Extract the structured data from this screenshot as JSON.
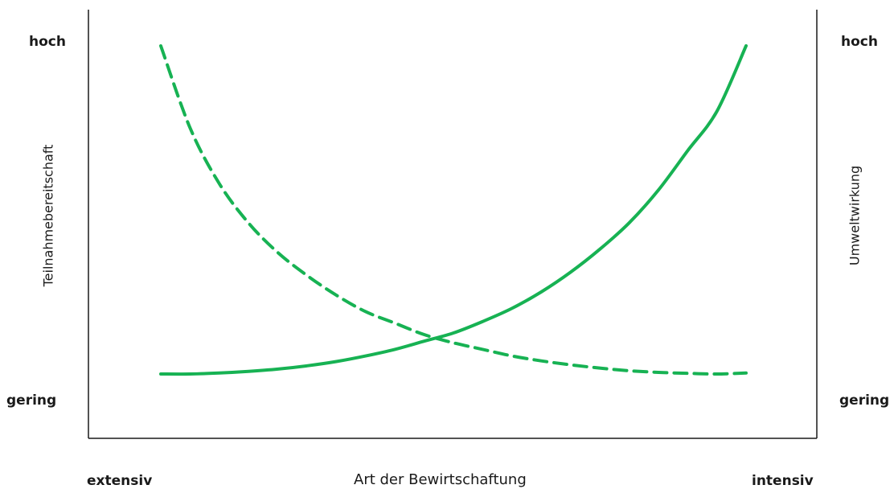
{
  "chart_data": {
    "type": "line",
    "x_axis": {
      "title": "Art der Bewirtschaftung",
      "min_label": "extensiv",
      "max_label": "intensiv",
      "range": [
        0,
        1
      ]
    },
    "y_axis_left": {
      "title": "Teilnahmebereitschaft",
      "max_label": "hoch",
      "min_label": "gering",
      "range": [
        0,
        1
      ]
    },
    "y_axis_right": {
      "title": "Umweltwirkung",
      "max_label": "hoch",
      "min_label": "gering",
      "range": [
        0,
        1
      ]
    },
    "grid": false,
    "color": "#17b253",
    "series": [
      {
        "style": "dashed",
        "axis": "left",
        "x": [
          0.0,
          0.05,
          0.1,
          0.15,
          0.2,
          0.25,
          0.3,
          0.35,
          0.4,
          0.45,
          0.5,
          0.55,
          0.6,
          0.65,
          0.7,
          0.75,
          0.8,
          0.85,
          0.9,
          0.95,
          1.0
        ],
        "values": [
          1.0,
          0.75,
          0.58,
          0.46,
          0.37,
          0.3,
          0.24,
          0.19,
          0.155,
          0.12,
          0.095,
          0.075,
          0.055,
          0.04,
          0.028,
          0.018,
          0.01,
          0.005,
          0.002,
          0.0,
          0.003
        ]
      },
      {
        "style": "solid",
        "axis": "right",
        "x": [
          0.0,
          0.05,
          0.1,
          0.15,
          0.2,
          0.25,
          0.3,
          0.35,
          0.4,
          0.45,
          0.5,
          0.55,
          0.6,
          0.65,
          0.7,
          0.75,
          0.8,
          0.85,
          0.9,
          0.95,
          1.0
        ],
        "values": [
          0.0,
          0.0,
          0.003,
          0.008,
          0.015,
          0.025,
          0.038,
          0.055,
          0.075,
          0.1,
          0.125,
          0.16,
          0.2,
          0.25,
          0.31,
          0.38,
          0.46,
          0.56,
          0.68,
          0.8,
          1.0
        ]
      }
    ]
  }
}
